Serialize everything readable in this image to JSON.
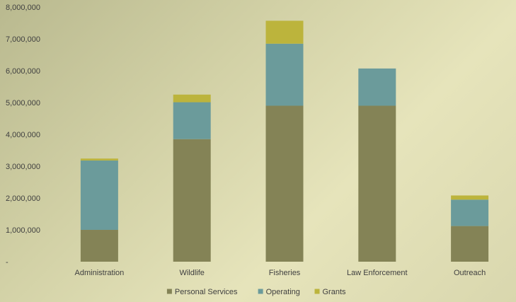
{
  "chart_data": {
    "type": "bar",
    "stacked": true,
    "categories": [
      "Administration",
      "Wildlife",
      "Fisheries",
      "Law Enforcement",
      "Outreach"
    ],
    "series": [
      {
        "name": "Personal Services",
        "color": "#848356",
        "values": [
          1000000,
          3850000,
          4900000,
          4900000,
          1120000
        ]
      },
      {
        "name": "Operating",
        "color": "#6b9b9b",
        "values": [
          2180000,
          1160000,
          1950000,
          1170000,
          830000
        ]
      },
      {
        "name": "Grants",
        "color": "#bcb43c",
        "values": [
          60000,
          240000,
          720000,
          0,
          130000
        ]
      }
    ],
    "y_ticks": [
      "-",
      "1,000,000",
      "2,000,000",
      "3,000,000",
      "4,000,000",
      "5,000,000",
      "6,000,000",
      "7,000,000",
      "8,000,000"
    ],
    "ylim": [
      0,
      8000000
    ],
    "grid": false,
    "legend_position": "bottom",
    "title": "",
    "xlabel": "",
    "ylabel": ""
  }
}
